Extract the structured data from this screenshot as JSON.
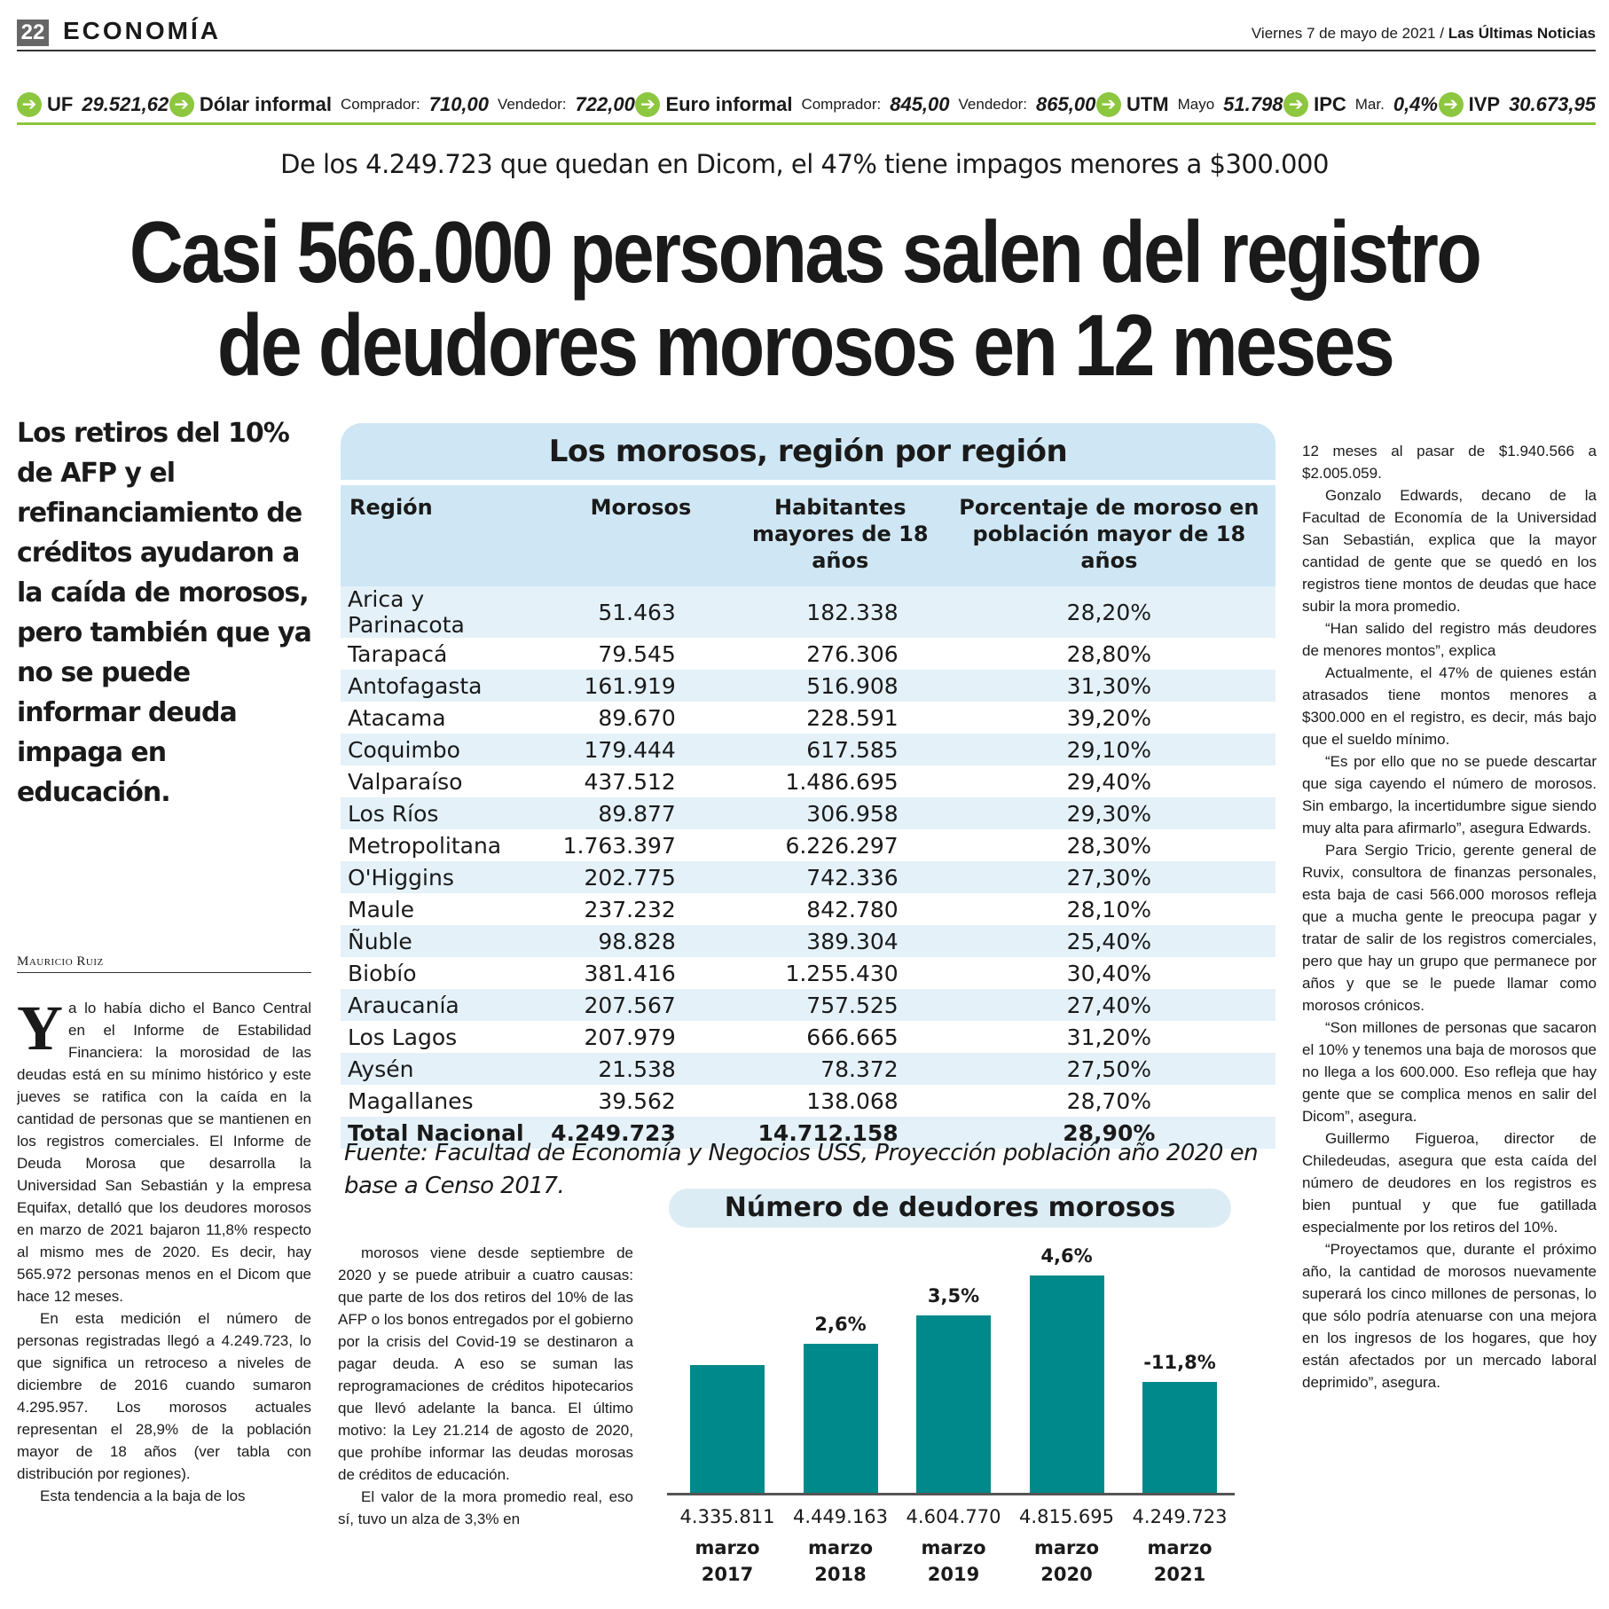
{
  "header": {
    "page": "22",
    "section": "ECONOMÍA",
    "date": "Viernes 7 de mayo de 2021",
    "separator": "/",
    "paper": "Las Últimas Noticias"
  },
  "indicators": [
    {
      "label": "UF",
      "fields": [
        {
          "value": "29.521,62"
        }
      ]
    },
    {
      "label": "Dólar informal",
      "fields": [
        {
          "name": "Comprador:",
          "value": "710,00"
        },
        {
          "name": "Vendedor:",
          "value": "722,00"
        }
      ]
    },
    {
      "label": "Euro informal",
      "fields": [
        {
          "name": "Comprador:",
          "value": "845,00"
        },
        {
          "name": "Vendedor:",
          "value": "865,00"
        }
      ]
    },
    {
      "label": "UTM",
      "fields": [
        {
          "name": "Mayo",
          "value": "51.798"
        }
      ]
    },
    {
      "label": "IPC",
      "fields": [
        {
          "name": "Mar.",
          "value": "0,4%"
        }
      ]
    },
    {
      "label": "IVP",
      "fields": [
        {
          "value": "30.673,95"
        }
      ]
    }
  ],
  "article": {
    "kicker": "De los 4.249.723 que quedan en Dicom, el 47% tiene impagos menores a $300.000",
    "headline": [
      "Casi 566.000 personas salen del registro",
      "de deudores morosos en 12 meses"
    ],
    "lead": "Los retiros del 10% de AFP y el refinanciamiento de créditos ayudaron a la caída de morosos, pero también que ya no se puede informar deuda impaga en educación.",
    "byline": "Mauricio Ruiz",
    "columns": [
      [
        "Ya lo había dicho el Banco Central en el Informe de Estabilidad Financiera: la morosidad de las deudas está en su mínimo histórico y este jueves se ratifica con la caída en la cantidad de personas que se mantienen en los registros comerciales. El Informe de Deuda Morosa que desarrolla la Universidad San Sebastián y la empresa Equifax, detalló que los deudores morosos en marzo de 2021 bajaron 11,8% respecto al mismo mes de 2020. Es decir, hay 565.972 personas menos en el Dicom que hace 12 meses.",
        "En esta medición el número de personas registradas llegó a 4.249.723, lo que significa un retroceso a niveles de diciembre de 2016 cuando sumaron 4.295.957. Los morosos actuales representan el 28,9% de la población mayor de 18 años (ver tabla con distribución por regiones).",
        "Esta tendencia a la baja de los"
      ],
      [
        "morosos viene desde septiembre de 2020 y se puede atribuir a cuatro causas: que parte de los dos retiros del 10% de las AFP o los bonos entregados por el gobierno por la crisis del Covid-19 se destinaron a pagar deuda. A eso se suman las reprogramaciones de créditos hipotecarios que llevó adelante la banca. El último motivo: la Ley 21.214 de agosto de 2020, que prohíbe informar las deudas morosas de créditos de educación.",
        "El valor de la mora promedio real, eso sí, tuvo un alza de 3,3% en"
      ],
      [
        "12 meses al pasar de $1.940.566 a $2.005.059.",
        "Gonzalo Edwards, decano de la Facultad de Economía de la Universidad San Sebastián, explica que la mayor cantidad de gente que se quedó en los registros tiene montos de deudas que hace subir la mora promedio.",
        "“Han salido del registro más deudores de menores montos”, explica",
        "Actualmente, el 47% de quienes están atrasados tiene montos menores a $300.000 en el registro, es decir, más bajo que el sueldo mínimo.",
        "“Es por ello que no se puede descartar que siga cayendo el número de morosos. Sin embargo, la incertidumbre sigue siendo muy alta para afirmarlo”, asegura Edwards.",
        "Para Sergio Tricio, gerente general de Ruvix, consultora de finanzas personales, esta baja de casi 566.000 morosos refleja que a mucha gente le preocupa pagar y tratar de salir de los registros comerciales, pero que hay un grupo que permanece por años y que se le puede llamar como morosos crónicos.",
        "“Son millones de personas que sacaron el 10% y tenemos una baja de morosos que no llega a los 600.000. Eso refleja que hay gente que se complica menos en salir del Dicom”, asegura.",
        "Guillermo Figueroa, director de Chiledeudas, asegura que esta caída del número de deudores en los registros es bien puntual y que fue gatillada especialmente por los retiros del 10%.",
        "“Proyectamos que, durante el próximo año, la cantidad de morosos nuevamente superará los cinco millones de personas, lo que sólo podría atenuarse con una mejora en los ingresos de los hogares, que hoy están afectados por un mercado laboral deprimido”, asegura."
      ]
    ]
  },
  "table": {
    "title": "Los morosos, región por región",
    "header": [
      "Región",
      "Morosos",
      "Habitantes mayores de 18 años",
      "Porcentaje de moroso en población mayor de 18 años"
    ],
    "rows": [
      [
        "Arica y Parinacota",
        "51.463",
        "182.338",
        "28,20%"
      ],
      [
        "Tarapacá",
        "79.545",
        "276.306",
        "28,80%"
      ],
      [
        "Antofagasta",
        "161.919",
        "516.908",
        "31,30%"
      ],
      [
        "Atacama",
        "89.670",
        "228.591",
        "39,20%"
      ],
      [
        "Coquimbo",
        "179.444",
        "617.585",
        "29,10%"
      ],
      [
        "Valparaíso",
        "437.512",
        "1.486.695",
        "29,40%"
      ],
      [
        "Los Ríos",
        "89.877",
        "306.958",
        "29,30%"
      ],
      [
        "Metropolitana",
        "1.763.397",
        "6.226.297",
        "28,30%"
      ],
      [
        "O'Higgins",
        "202.775",
        "742.336",
        "27,30%"
      ],
      [
        "Maule",
        "237.232",
        "842.780",
        "28,10%"
      ],
      [
        "Ñuble",
        "98.828",
        "389.304",
        "25,40%"
      ],
      [
        "Biobío",
        "381.416",
        "1.255.430",
        "30,40%"
      ],
      [
        "Araucanía",
        "207.567",
        "757.525",
        "27,40%"
      ],
      [
        "Los Lagos",
        "207.979",
        "666.665",
        "31,20%"
      ],
      [
        "Aysén",
        "21.538",
        "78.372",
        "27,50%"
      ],
      [
        "Magallanes",
        "39.562",
        "138.068",
        "28,70%"
      ]
    ],
    "total": [
      "Total Nacional",
      "4.249.723",
      "14.712.158",
      "28,90%"
    ],
    "source": "Fuente: Facultad de Economía y Negocios USS, Proyección población año 2020 en base a Censo 2017."
  },
  "chart_data": {
    "type": "bar",
    "title": "Número de deudores morosos",
    "categories": [
      "marzo 2017",
      "marzo 2018",
      "marzo 2019",
      "marzo 2020",
      "marzo 2021"
    ],
    "values": [
      4335811,
      4449163,
      4604770,
      4815695,
      4249723
    ],
    "value_labels": [
      "4.335.811",
      "4.449.163",
      "4.604.770",
      "4.815.695",
      "4.249.723"
    ],
    "annotations": [
      null,
      "2,6%",
      "3,5%",
      "4,6%",
      "-11,8%"
    ],
    "color": "#00898a"
  }
}
